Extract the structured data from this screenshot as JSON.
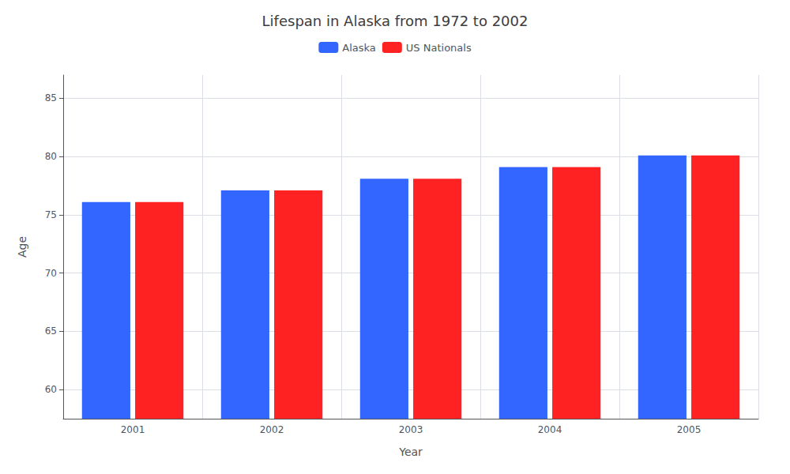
{
  "chart_data": {
    "type": "bar",
    "title": "Lifespan in Alaska from 1972 to 2002",
    "x_label": "Year",
    "y_label": "Age",
    "categories": [
      "2001",
      "2002",
      "2003",
      "2004",
      "2005"
    ],
    "series": [
      {
        "name": "Alaska",
        "color": "#3366ff",
        "values": [
          76.1,
          77.1,
          78.1,
          79.1,
          80.1
        ]
      },
      {
        "name": "US Nationals",
        "color": "#ff2222",
        "values": [
          76.1,
          77.1,
          78.1,
          79.1,
          80.1
        ]
      }
    ],
    "ylim": [
      57.5,
      87
    ],
    "yticks": [
      60,
      65,
      70,
      75,
      80,
      85
    ],
    "grid": true,
    "legend": "top"
  }
}
